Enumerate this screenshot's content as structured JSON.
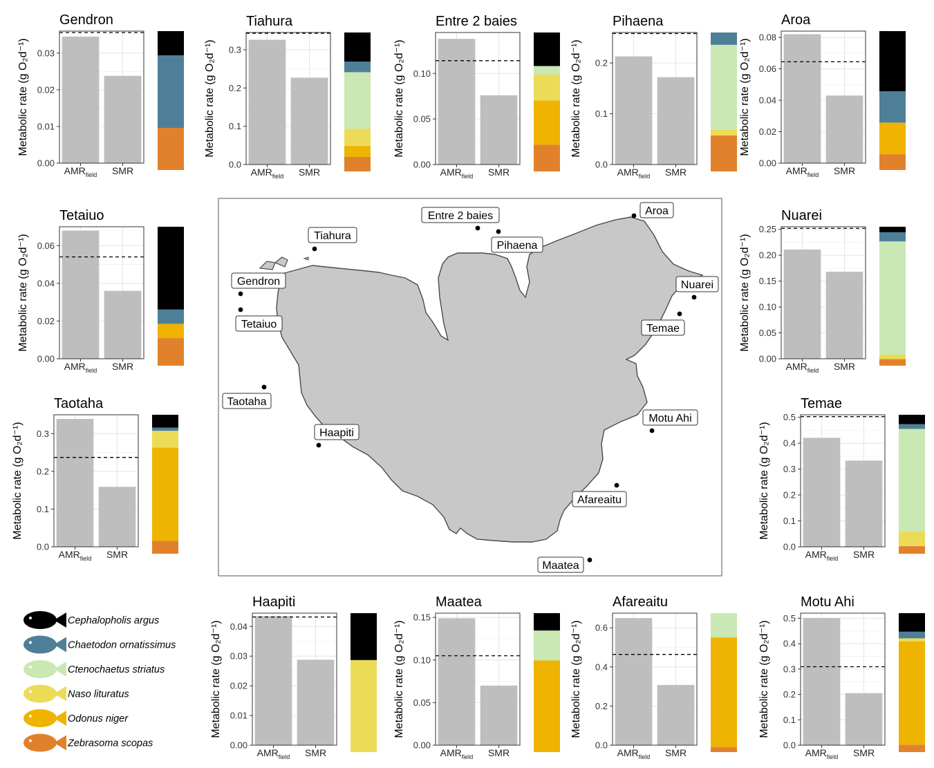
{
  "shared": {
    "ylabel": "Metabolic rate (g O₂d⁻¹)",
    "cat_amr": "AMR",
    "cat_amr_sub": "field",
    "cat_smr": "SMR"
  },
  "colors": {
    "bar": "#bebebe",
    "Cephalopholis argus": "#000000",
    "Chaetodon ornatissimus": "#4e7f99",
    "Ctenochaetus striatus": "#c9e8b3",
    "Naso lituratus": "#ecdb57",
    "Odonus niger": "#efb302",
    "Zebrasoma scopas": "#e2812c"
  },
  "legend": {
    "species": [
      "Cephalopholis argus",
      "Chaetodon ornatissimus",
      "Ctenochaetus striatus",
      "Naso lituratus",
      "Odonus niger",
      "Zebrasoma scopas"
    ]
  },
  "map": {
    "sites": [
      {
        "name": "Tiahura",
        "key": "tiahura"
      },
      {
        "name": "Entre 2 baies",
        "key": "entre"
      },
      {
        "name": "Pihaena",
        "key": "pihaena"
      },
      {
        "name": "Aroa",
        "key": "aroa"
      },
      {
        "name": "Gendron",
        "key": "gendron"
      },
      {
        "name": "Tetaiuo",
        "key": "tetaiuo"
      },
      {
        "name": "Nuarei",
        "key": "nuarei"
      },
      {
        "name": "Temae",
        "key": "temae"
      },
      {
        "name": "Taotaha",
        "key": "taotaha"
      },
      {
        "name": "Haapiti",
        "key": "haapiti"
      },
      {
        "name": "Motu Ahi",
        "key": "motuahi"
      },
      {
        "name": "Afareaitu",
        "key": "afareaitu"
      },
      {
        "name": "Maatea",
        "key": "maatea"
      }
    ]
  },
  "chart_data": [
    {
      "type": "bar",
      "title": "Gendron",
      "categories": [
        "AMRfield",
        "SMR"
      ],
      "values": [
        0.0345,
        0.0238
      ],
      "reference_line": 0.0356,
      "ylim": [
        0,
        0.036
      ],
      "yticks": [
        0,
        0.01,
        0.02,
        0.03
      ],
      "tick_labels": [
        "0.00",
        "0.01",
        "0.02",
        "0.03"
      ],
      "stack": [
        {
          "species": "Zebrasoma scopas",
          "value": 0.0108
        },
        {
          "species": "Chaetodon ornatissimus",
          "value": 0.0186
        },
        {
          "species": "Cephalopholis argus",
          "value": 0.0062
        }
      ]
    },
    {
      "type": "bar",
      "title": "Tiahura",
      "categories": [
        "AMRfield",
        "SMR"
      ],
      "values": [
        0.326,
        0.227
      ],
      "reference_line": 0.343,
      "ylim": [
        0,
        0.345
      ],
      "yticks": [
        0,
        0.1,
        0.2,
        0.3
      ],
      "tick_labels": [
        "0.0",
        "0.1",
        "0.2",
        "0.3"
      ],
      "stack": [
        {
          "species": "Zebrasoma scopas",
          "value": 0.036
        },
        {
          "species": "Odonus niger",
          "value": 0.027
        },
        {
          "species": "Naso lituratus",
          "value": 0.042
        },
        {
          "species": "Ctenochaetus striatus",
          "value": 0.14
        },
        {
          "species": "Chaetodon ornatissimus",
          "value": 0.026
        },
        {
          "species": "Cephalopholis argus",
          "value": 0.072
        }
      ]
    },
    {
      "type": "bar",
      "title": "Entre 2 baies",
      "categories": [
        "AMRfield",
        "SMR"
      ],
      "values": [
        0.138,
        0.076
      ],
      "reference_line": 0.114,
      "ylim": [
        0,
        0.145
      ],
      "yticks": [
        0,
        0.05,
        0.1
      ],
      "tick_labels": [
        "0.00",
        "0.05",
        "0.10"
      ],
      "stack": [
        {
          "species": "Zebrasoma scopas",
          "value": 0.028
        },
        {
          "species": "Odonus niger",
          "value": 0.046
        },
        {
          "species": "Naso lituratus",
          "value": 0.027
        },
        {
          "species": "Ctenochaetus striatus",
          "value": 0.009
        },
        {
          "species": "Cephalopholis argus",
          "value": 0.035
        }
      ]
    },
    {
      "type": "bar",
      "title": "Pihaena",
      "categories": [
        "AMRfield",
        "SMR"
      ],
      "values": [
        0.213,
        0.172
      ],
      "reference_line": 0.258,
      "ylim": [
        0,
        0.26
      ],
      "yticks": [
        0,
        0.1,
        0.2
      ],
      "tick_labels": [
        "0.0",
        "0.1",
        "0.2"
      ],
      "stack": [
        {
          "species": "Zebrasoma scopas",
          "value": 0.07
        },
        {
          "species": "Naso lituratus",
          "value": 0.011
        },
        {
          "species": "Ctenochaetus striatus",
          "value": 0.165
        },
        {
          "species": "Chaetodon ornatissimus",
          "value": 0.024
        }
      ]
    },
    {
      "type": "bar",
      "title": "Aroa",
      "categories": [
        "AMRfield",
        "SMR"
      ],
      "values": [
        0.082,
        0.043
      ],
      "reference_line": 0.0645,
      "ylim": [
        0,
        0.084
      ],
      "yticks": [
        0,
        0.02,
        0.04,
        0.06,
        0.08
      ],
      "tick_labels": [
        "0.00",
        "0.02",
        "0.04",
        "0.06",
        "0.08"
      ],
      "stack": [
        {
          "species": "Zebrasoma scopas",
          "value": 0.0095
        },
        {
          "species": "Odonus niger",
          "value": 0.0185
        },
        {
          "species": "Chaetodon ornatissimus",
          "value": 0.0185
        },
        {
          "species": "Cephalopholis argus",
          "value": 0.0355
        }
      ]
    },
    {
      "type": "bar",
      "title": "Tetaiuo",
      "categories": [
        "AMRfield",
        "SMR"
      ],
      "values": [
        0.068,
        0.036
      ],
      "reference_line": 0.054,
      "ylim": [
        0,
        0.07
      ],
      "yticks": [
        0,
        0.02,
        0.04,
        0.06
      ],
      "tick_labels": [
        "0.00",
        "0.02",
        "0.04",
        "0.06"
      ],
      "stack": [
        {
          "species": "Zebrasoma scopas",
          "value": 0.0145
        },
        {
          "species": "Odonus niger",
          "value": 0.0075
        },
        {
          "species": "Chaetodon ornatissimus",
          "value": 0.0075
        },
        {
          "species": "Cephalopholis argus",
          "value": 0.0435
        }
      ]
    },
    {
      "type": "bar",
      "title": "Nuarei",
      "categories": [
        "AMRfield",
        "SMR"
      ],
      "values": [
        0.211,
        0.168
      ],
      "reference_line": 0.252,
      "ylim": [
        0,
        0.255
      ],
      "yticks": [
        0,
        0.05,
        0.1,
        0.15,
        0.2,
        0.25
      ],
      "tick_labels": [
        "0.00",
        "0.05",
        "0.10",
        "0.15",
        "0.20",
        "0.25"
      ],
      "stack": [
        {
          "species": "Zebrasoma scopas",
          "value": 0.0125
        },
        {
          "species": "Naso lituratus",
          "value": 0.0085
        },
        {
          "species": "Ctenochaetus striatus",
          "value": 0.216
        },
        {
          "species": "Chaetodon ornatissimus",
          "value": 0.0175
        },
        {
          "species": "Cephalopholis argus",
          "value": 0.0105
        }
      ]
    },
    {
      "type": "bar",
      "title": "Taotaha",
      "categories": [
        "AMRfield",
        "SMR"
      ],
      "values": [
        0.339,
        0.159
      ],
      "reference_line": 0.237,
      "ylim": [
        0,
        0.35
      ],
      "yticks": [
        0,
        0.1,
        0.2,
        0.3
      ],
      "tick_labels": [
        "0.0",
        "0.1",
        "0.2",
        "0.3"
      ],
      "stack": [
        {
          "species": "Zebrasoma scopas",
          "value": 0.036
        },
        {
          "species": "Odonus niger",
          "value": 0.262
        },
        {
          "species": "Naso lituratus",
          "value": 0.047
        },
        {
          "species": "Chaetodon ornatissimus",
          "value": 0.009
        },
        {
          "species": "Cephalopholis argus",
          "value": 0.036
        }
      ]
    },
    {
      "type": "bar",
      "title": "Temae",
      "categories": [
        "AMRfield",
        "SMR"
      ],
      "values": [
        0.421,
        0.333
      ],
      "reference_line": 0.503,
      "ylim": [
        0,
        0.51
      ],
      "yticks": [
        0,
        0.1,
        0.2,
        0.3,
        0.4,
        0.5
      ],
      "tick_labels": [
        "0.0",
        "0.1",
        "0.2",
        "0.3",
        "0.4",
        "0.5"
      ],
      "stack": [
        {
          "species": "Zebrasoma scopas",
          "value": 0.032
        },
        {
          "species": "Naso lituratus",
          "value": 0.062
        },
        {
          "species": "Ctenochaetus striatus",
          "value": 0.436
        },
        {
          "species": "Chaetodon ornatissimus",
          "value": 0.02
        },
        {
          "species": "Cephalopholis argus",
          "value": 0.04
        }
      ]
    },
    {
      "type": "bar",
      "title": "Haapiti",
      "categories": [
        "AMRfield",
        "SMR"
      ],
      "values": [
        0.0435,
        0.0288
      ],
      "reference_line": 0.0432,
      "ylim": [
        0,
        0.0445
      ],
      "yticks": [
        0,
        0.01,
        0.02,
        0.03,
        0.04
      ],
      "tick_labels": [
        "0.00",
        "0.01",
        "0.02",
        "0.03",
        "0.04"
      ],
      "stack": [
        {
          "species": "Naso lituratus",
          "value": 0.031
        },
        {
          "species": "Cephalopholis argus",
          "value": 0.0158
        }
      ]
    },
    {
      "type": "bar",
      "title": "Maatea",
      "categories": [
        "AMRfield",
        "SMR"
      ],
      "values": [
        0.149,
        0.07
      ],
      "reference_line": 0.105,
      "ylim": [
        0,
        0.155
      ],
      "yticks": [
        0,
        0.05,
        0.1,
        0.15
      ],
      "tick_labels": [
        "0.00",
        "0.05",
        "0.10",
        "0.15"
      ],
      "stack": [
        {
          "species": "Odonus niger",
          "value": 0.1055
        },
        {
          "species": "Ctenochaetus striatus",
          "value": 0.0345
        },
        {
          "species": "Cephalopholis argus",
          "value": 0.02
        }
      ]
    },
    {
      "type": "bar",
      "title": "Afareaitu",
      "categories": [
        "AMRfield",
        "SMR"
      ],
      "values": [
        0.65,
        0.308
      ],
      "reference_line": 0.464,
      "ylim": [
        0,
        0.675
      ],
      "yticks": [
        0,
        0.2,
        0.4,
        0.6
      ],
      "tick_labels": [
        "0.0",
        "0.2",
        "0.4",
        "0.6"
      ],
      "stack": [
        {
          "species": "Zebrasoma scopas",
          "value": 0.026
        },
        {
          "species": "Odonus niger",
          "value": 0.56
        },
        {
          "species": "Ctenochaetus striatus",
          "value": 0.124
        }
      ]
    },
    {
      "type": "bar",
      "title": "Motu Ahi",
      "categories": [
        "AMRfield",
        "SMR"
      ],
      "values": [
        0.501,
        0.205
      ],
      "reference_line": 0.309,
      "ylim": [
        0,
        0.52
      ],
      "yticks": [
        0,
        0.1,
        0.2,
        0.3,
        0.4,
        0.5
      ],
      "tick_labels": [
        "0.0",
        "0.1",
        "0.2",
        "0.3",
        "0.4",
        "0.5"
      ],
      "stack": [
        {
          "species": "Zebrasoma scopas",
          "value": 0.028
        },
        {
          "species": "Odonus niger",
          "value": 0.39
        },
        {
          "species": "Naso lituratus",
          "value": 0.011
        },
        {
          "species": "Chaetodon ornatissimus",
          "value": 0.025
        },
        {
          "species": "Cephalopholis argus",
          "value": 0.07
        }
      ]
    }
  ]
}
